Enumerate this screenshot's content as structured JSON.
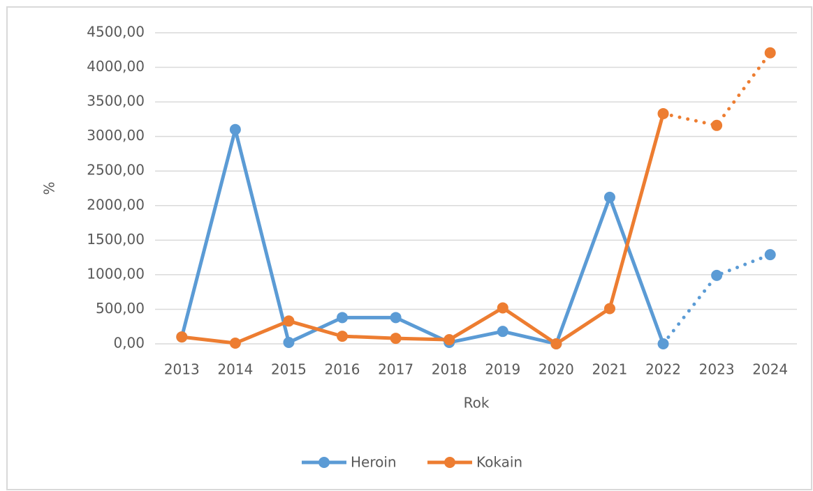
{
  "chart_data": {
    "type": "line",
    "x_label": "Rok",
    "y_label": "%",
    "categories": [
      "2013",
      "2014",
      "2015",
      "2016",
      "2017",
      "2018",
      "2019",
      "2020",
      "2021",
      "2022",
      "2023",
      "2024"
    ],
    "series": [
      {
        "name": "Heroin",
        "color": "#5b9bd5",
        "values": [
          100,
          3100,
          20,
          380,
          380,
          20,
          180,
          0,
          2120,
          0,
          null,
          null
        ],
        "projected_values": [
          null,
          null,
          null,
          null,
          null,
          null,
          null,
          null,
          null,
          0,
          990,
          1290
        ]
      },
      {
        "name": "Kokain",
        "color": "#ed7d31",
        "values": [
          100,
          10,
          330,
          110,
          80,
          60,
          520,
          0,
          510,
          3330,
          null,
          null
        ],
        "projected_values": [
          null,
          null,
          null,
          null,
          null,
          null,
          null,
          null,
          null,
          3330,
          3160,
          4210
        ]
      }
    ],
    "ylim": [
      0,
      4500
    ],
    "yticks": [
      {
        "value": 0,
        "label": "0,00"
      },
      {
        "value": 500,
        "label": "500,00"
      },
      {
        "value": 1000,
        "label": "1000,00"
      },
      {
        "value": 1500,
        "label": "1500,00"
      },
      {
        "value": 2000,
        "label": "2000,00"
      },
      {
        "value": 2500,
        "label": "2500,00"
      },
      {
        "value": 3000,
        "label": "3000,00"
      },
      {
        "value": 3500,
        "label": "3500,00"
      },
      {
        "value": 4000,
        "label": "4000,00"
      },
      {
        "value": 4500,
        "label": "4500,00"
      }
    ],
    "grid": true,
    "legend": "bottom"
  }
}
